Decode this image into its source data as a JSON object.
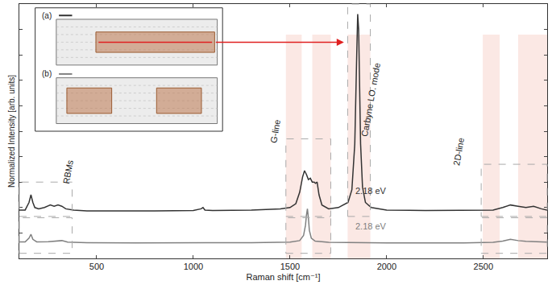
{
  "chart_data": {
    "type": "line",
    "x_label": "Raman shift [cm⁻¹]",
    "y_label": "Normalized Intensity [arb. units]",
    "xlim": [
      100,
      2830
    ],
    "xticks": [
      500,
      1000,
      1500,
      2000,
      2500
    ],
    "ylim": [
      0,
      1
    ],
    "tick_labels": "x",
    "grid": false,
    "annotations": [
      "RBMs",
      "G-line",
      "Carbyne LO. mode",
      "2D-line"
    ],
    "series": [
      {
        "name": "(a)",
        "color": "#333333",
        "line_style": "solid",
        "label": "2.18 eV",
        "x": [
          100,
          130,
          150,
          160,
          170,
          180,
          200,
          230,
          260,
          280,
          300,
          320,
          340,
          380,
          450,
          600,
          800,
          1000,
          1040,
          1050,
          1060,
          1100,
          1300,
          1450,
          1500,
          1530,
          1550,
          1565,
          1575,
          1585,
          1595,
          1605,
          1615,
          1625,
          1632,
          1640,
          1650,
          1665,
          1700,
          1750,
          1800,
          1820,
          1835,
          1845,
          1850,
          1855,
          1860,
          1865,
          1875,
          1890,
          1920,
          2000,
          2200,
          2400,
          2550,
          2600,
          2640,
          2680,
          2720,
          2760,
          2800,
          2830
        ],
        "values": [
          0.19,
          0.19,
          0.22,
          0.25,
          0.22,
          0.2,
          0.195,
          0.2,
          0.21,
          0.205,
          0.21,
          0.205,
          0.195,
          0.19,
          0.187,
          0.186,
          0.187,
          0.188,
          0.195,
          0.2,
          0.19,
          0.188,
          0.19,
          0.195,
          0.2,
          0.215,
          0.26,
          0.32,
          0.345,
          0.33,
          0.31,
          0.315,
          0.3,
          0.3,
          0.295,
          0.3,
          0.25,
          0.21,
          0.195,
          0.2,
          0.22,
          0.27,
          0.45,
          0.8,
          0.96,
          0.9,
          0.7,
          0.45,
          0.28,
          0.22,
          0.2,
          0.19,
          0.188,
          0.188,
          0.19,
          0.2,
          0.21,
          0.205,
          0.2,
          0.205,
          0.195,
          0.19
        ]
      },
      {
        "name": "(b)",
        "color": "#808080",
        "line_style": "solid",
        "label": "2.18 eV",
        "x": [
          100,
          130,
          150,
          160,
          170,
          190,
          250,
          300,
          320,
          350,
          450,
          700,
          1000,
          1300,
          1500,
          1550,
          1570,
          1580,
          1585,
          1590,
          1595,
          1600,
          1610,
          1630,
          1700,
          2000,
          2400,
          2550,
          2600,
          2640,
          2680,
          2720,
          2830
        ],
        "values": [
          0.065,
          0.065,
          0.08,
          0.095,
          0.075,
          0.065,
          0.066,
          0.068,
          0.07,
          0.064,
          0.062,
          0.061,
          0.061,
          0.062,
          0.064,
          0.07,
          0.09,
          0.13,
          0.17,
          0.195,
          0.16,
          0.11,
          0.08,
          0.068,
          0.063,
          0.061,
          0.061,
          0.063,
          0.068,
          0.075,
          0.07,
          0.067,
          0.064
        ]
      }
    ]
  }
}
